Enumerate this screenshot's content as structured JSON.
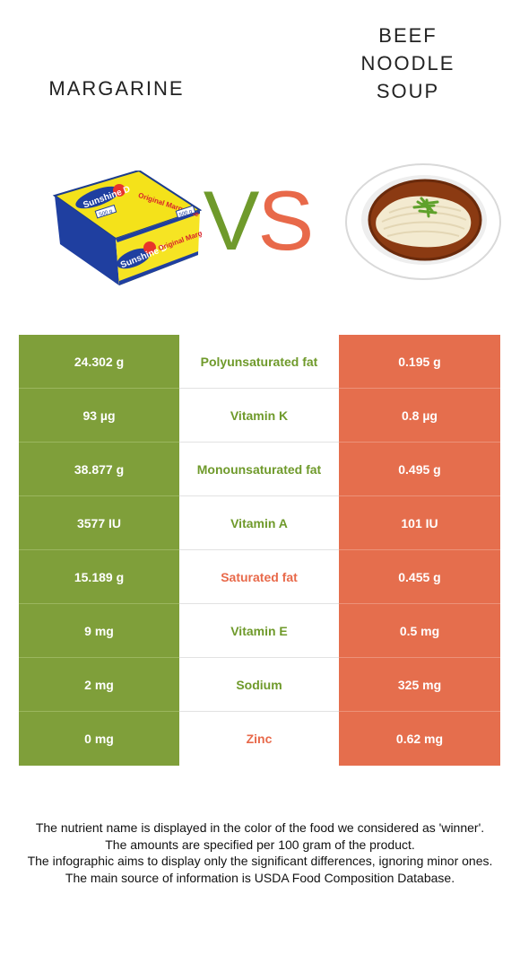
{
  "header": {
    "left_food": "MARGARINE",
    "right_food": "BEEF\nNOODLE\nSOUP",
    "vs_v": "V",
    "vs_s": "S"
  },
  "packaging": {
    "brand": "Sunshine D",
    "product": "Original Margarine",
    "weight": "500 g"
  },
  "colors": {
    "winner_left": "#6f9a2b",
    "winner_right": "#e8694a",
    "left_cell": "#7f9f3a",
    "right_cell": "#e56e4d"
  },
  "rows": [
    {
      "left": "24.302 g",
      "name": "Polyunsaturated fat",
      "right": "0.195 g",
      "winner": "left"
    },
    {
      "left": "93 µg",
      "name": "Vitamin K",
      "right": "0.8 µg",
      "winner": "left"
    },
    {
      "left": "38.877 g",
      "name": "Monounsaturated fat",
      "right": "0.495 g",
      "winner": "left"
    },
    {
      "left": "3577 IU",
      "name": "Vitamin A",
      "right": "101 IU",
      "winner": "left"
    },
    {
      "left": "15.189 g",
      "name": "Saturated fat",
      "right": "0.455 g",
      "winner": "right"
    },
    {
      "left": "9 mg",
      "name": "Vitamin E",
      "right": "0.5 mg",
      "winner": "left"
    },
    {
      "left": "2 mg",
      "name": "Sodium",
      "right": "325 mg",
      "winner": "left"
    },
    {
      "left": "0 mg",
      "name": "Zinc",
      "right": "0.62 mg",
      "winner": "right"
    }
  ],
  "footnotes": [
    "The nutrient name is displayed in the color of the food we considered as 'winner'.",
    "The amounts are specified per 100 gram of the product.",
    "The infographic aims to display only the significant differences, ignoring minor ones.",
    "The main source of information is USDA Food Composition Database."
  ]
}
